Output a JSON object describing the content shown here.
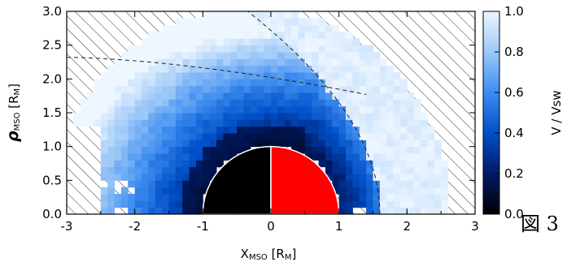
{
  "chart_data": {
    "type": "heatmap",
    "title": "",
    "xlabel": "X",
    "xlabel_sub": "MSO",
    "xlabel_unit_main": " [R",
    "xlabel_unit_sub": "M",
    "xlabel_unit_close": "]",
    "ylabel": "ρ",
    "ylabel_sub": "MSO",
    "ylabel_unit_main": " [R",
    "ylabel_unit_sub": "M",
    "ylabel_unit_close": "]",
    "xlim": [
      -3,
      3
    ],
    "ylim": [
      0,
      3
    ],
    "x_ticks": [
      "-3",
      "-2",
      "-1",
      "0",
      "1",
      "2",
      "3"
    ],
    "y_ticks": [
      "0.0",
      "0.5",
      "1.0",
      "1.5",
      "2.0",
      "2.5",
      "3.0"
    ],
    "colorbar": {
      "label": "V / Vsw",
      "range": [
        0,
        1
      ],
      "ticks": [
        "0.0",
        "0.2",
        "0.4",
        "0.6",
        "0.8",
        "1.0"
      ],
      "colors": [
        "#000000",
        "#001a66",
        "#0050c8",
        "#3c8cf0",
        "#9cc8f8",
        "#eef6ff"
      ]
    },
    "planet": {
      "radius": 1,
      "dayside_color": "#ff0000",
      "nightside_color": "#000000"
    },
    "bow_shock": {
      "subsolar_x": 1.6,
      "flaring": "dashed"
    },
    "magnetopause": {
      "style": "dashed"
    },
    "no_data_fill": "hatched",
    "grid": false,
    "cell_size": 0.1
  },
  "caption": "図 3"
}
